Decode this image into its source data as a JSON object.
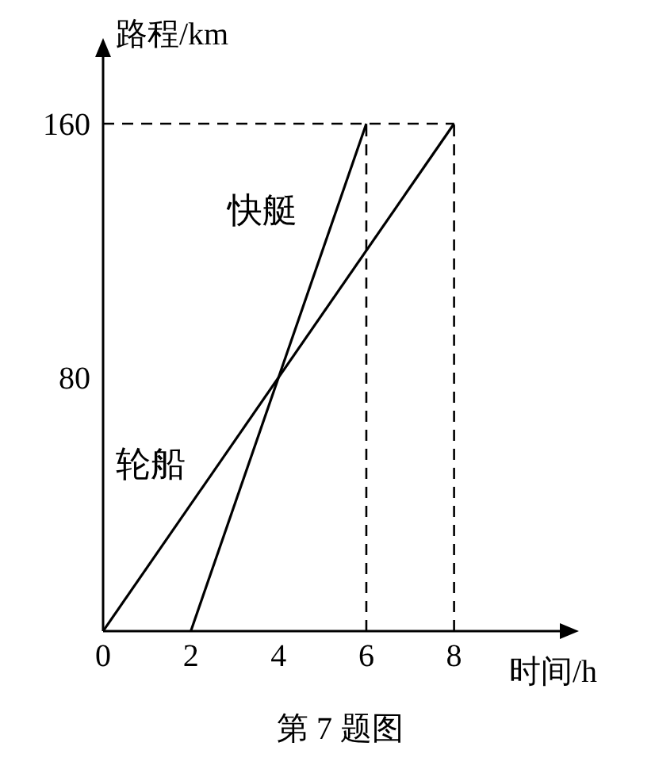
{
  "chart_data": {
    "type": "line",
    "xlabel": "时间/h",
    "ylabel": "路程/km",
    "annotations": [
      "第 7 题图"
    ],
    "series": [
      {
        "name": "快艇",
        "color": "#000000",
        "x": [
          2,
          6
        ],
        "values": [
          0,
          160
        ]
      },
      {
        "name": "轮船",
        "color": "#000000",
        "x": [
          0,
          8
        ],
        "values": [
          0,
          160
        ]
      }
    ],
    "xlim": [
      0,
      10.7
    ],
    "xticks": [
      0,
      2,
      4,
      6,
      8
    ],
    "ylim": [
      0,
      185
    ],
    "yticks": [
      80,
      160
    ],
    "ref_lines": [
      {
        "axis": "y",
        "value": 160,
        "line_style": "dashed",
        "color": "#000000"
      },
      {
        "axis": "x",
        "value": 6,
        "line_style": "dashed",
        "color": "#000000"
      },
      {
        "axis": "x",
        "value": 8,
        "line_style": "dashed",
        "color": "#000000"
      }
    ],
    "grid": false,
    "legend": false,
    "marker": "none",
    "line_style": "solid"
  }
}
